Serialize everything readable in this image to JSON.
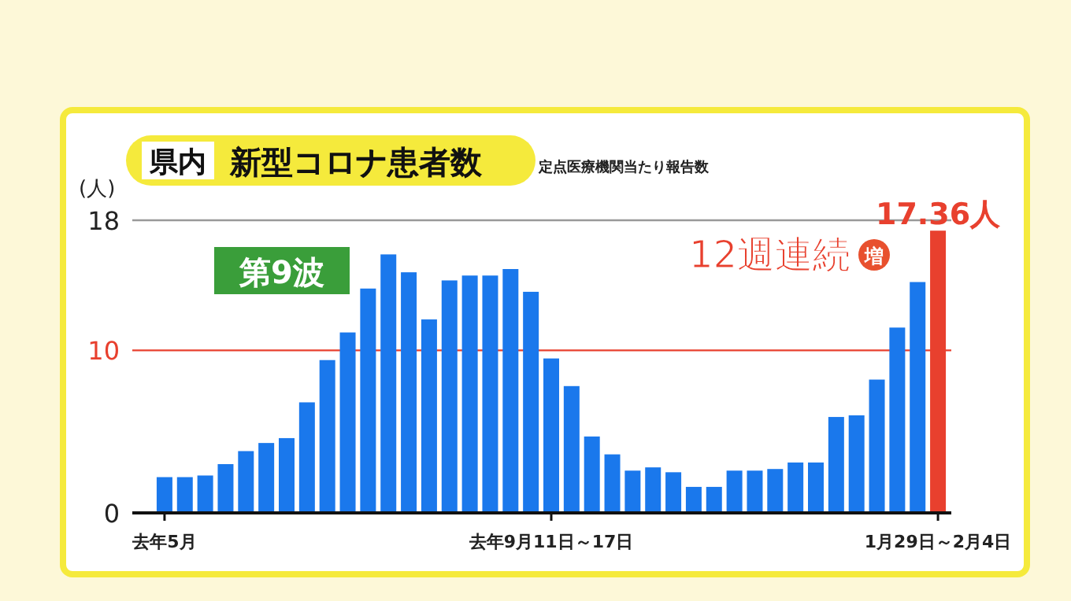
{
  "chart_data": {
    "type": "bar",
    "title": "県内",
    "subtitle": "新型コロナ患者数",
    "ylabel": "(人)",
    "annotations": [
      "定点医療機関当たり報告数",
      "第9波",
      "12週連続",
      "増"
    ],
    "categories": [
      "去年5月",
      null,
      null,
      null,
      null,
      null,
      null,
      null,
      null,
      null,
      null,
      null,
      null,
      null,
      null,
      null,
      null,
      null,
      null,
      "去年9月11日～17日",
      null,
      null,
      null,
      null,
      null,
      null,
      null,
      null,
      null,
      null,
      null,
      null,
      null,
      null,
      null,
      null,
      null,
      null,
      "1月29日～2月4日"
    ],
    "values": [
      2.2,
      2.2,
      2.3,
      3.0,
      3.8,
      4.3,
      4.6,
      6.8,
      9.4,
      11.1,
      13.8,
      15.9,
      14.8,
      11.9,
      14.3,
      14.6,
      14.6,
      15.0,
      13.6,
      9.5,
      7.8,
      4.7,
      3.6,
      2.6,
      2.8,
      2.5,
      1.6,
      1.6,
      2.6,
      2.6,
      2.7,
      3.1,
      3.1,
      5.9,
      6.0,
      8.2,
      11.4,
      14.2,
      17.36
    ],
    "colors": [
      "#1a78ec",
      "#1a78ec",
      "#1a78ec",
      "#1a78ec",
      "#1a78ec",
      "#1a78ec",
      "#1a78ec",
      "#1a78ec",
      "#1a78ec",
      "#1a78ec",
      "#1a78ec",
      "#1a78ec",
      "#1a78ec",
      "#1a78ec",
      "#1a78ec",
      "#1a78ec",
      "#1a78ec",
      "#1a78ec",
      "#1a78ec",
      "#1a78ec",
      "#1a78ec",
      "#1a78ec",
      "#1a78ec",
      "#1a78ec",
      "#1a78ec",
      "#1a78ec",
      "#1a78ec",
      "#1a78ec",
      "#1a78ec",
      "#1a78ec",
      "#1a78ec",
      "#1a78ec",
      "#1a78ec",
      "#1a78ec",
      "#1a78ec",
      "#1a78ec",
      "#1a78ec",
      "#1a78ec",
      "#e8402e"
    ],
    "value_labels": [
      null,
      null,
      null,
      null,
      null,
      null,
      null,
      null,
      null,
      null,
      null,
      null,
      null,
      null,
      null,
      null,
      null,
      null,
      null,
      null,
      null,
      null,
      null,
      null,
      null,
      null,
      null,
      null,
      null,
      null,
      null,
      null,
      null,
      null,
      null,
      null,
      null,
      null,
      "17.36人"
    ],
    "ylim": [
      0,
      18
    ],
    "yticks": [
      0,
      10,
      18
    ],
    "ref_lines": [
      {
        "axis": "y",
        "value": 10,
        "color": "#e8402e"
      },
      {
        "axis": "y",
        "value": 18,
        "color": "#999999"
      }
    ]
  }
}
